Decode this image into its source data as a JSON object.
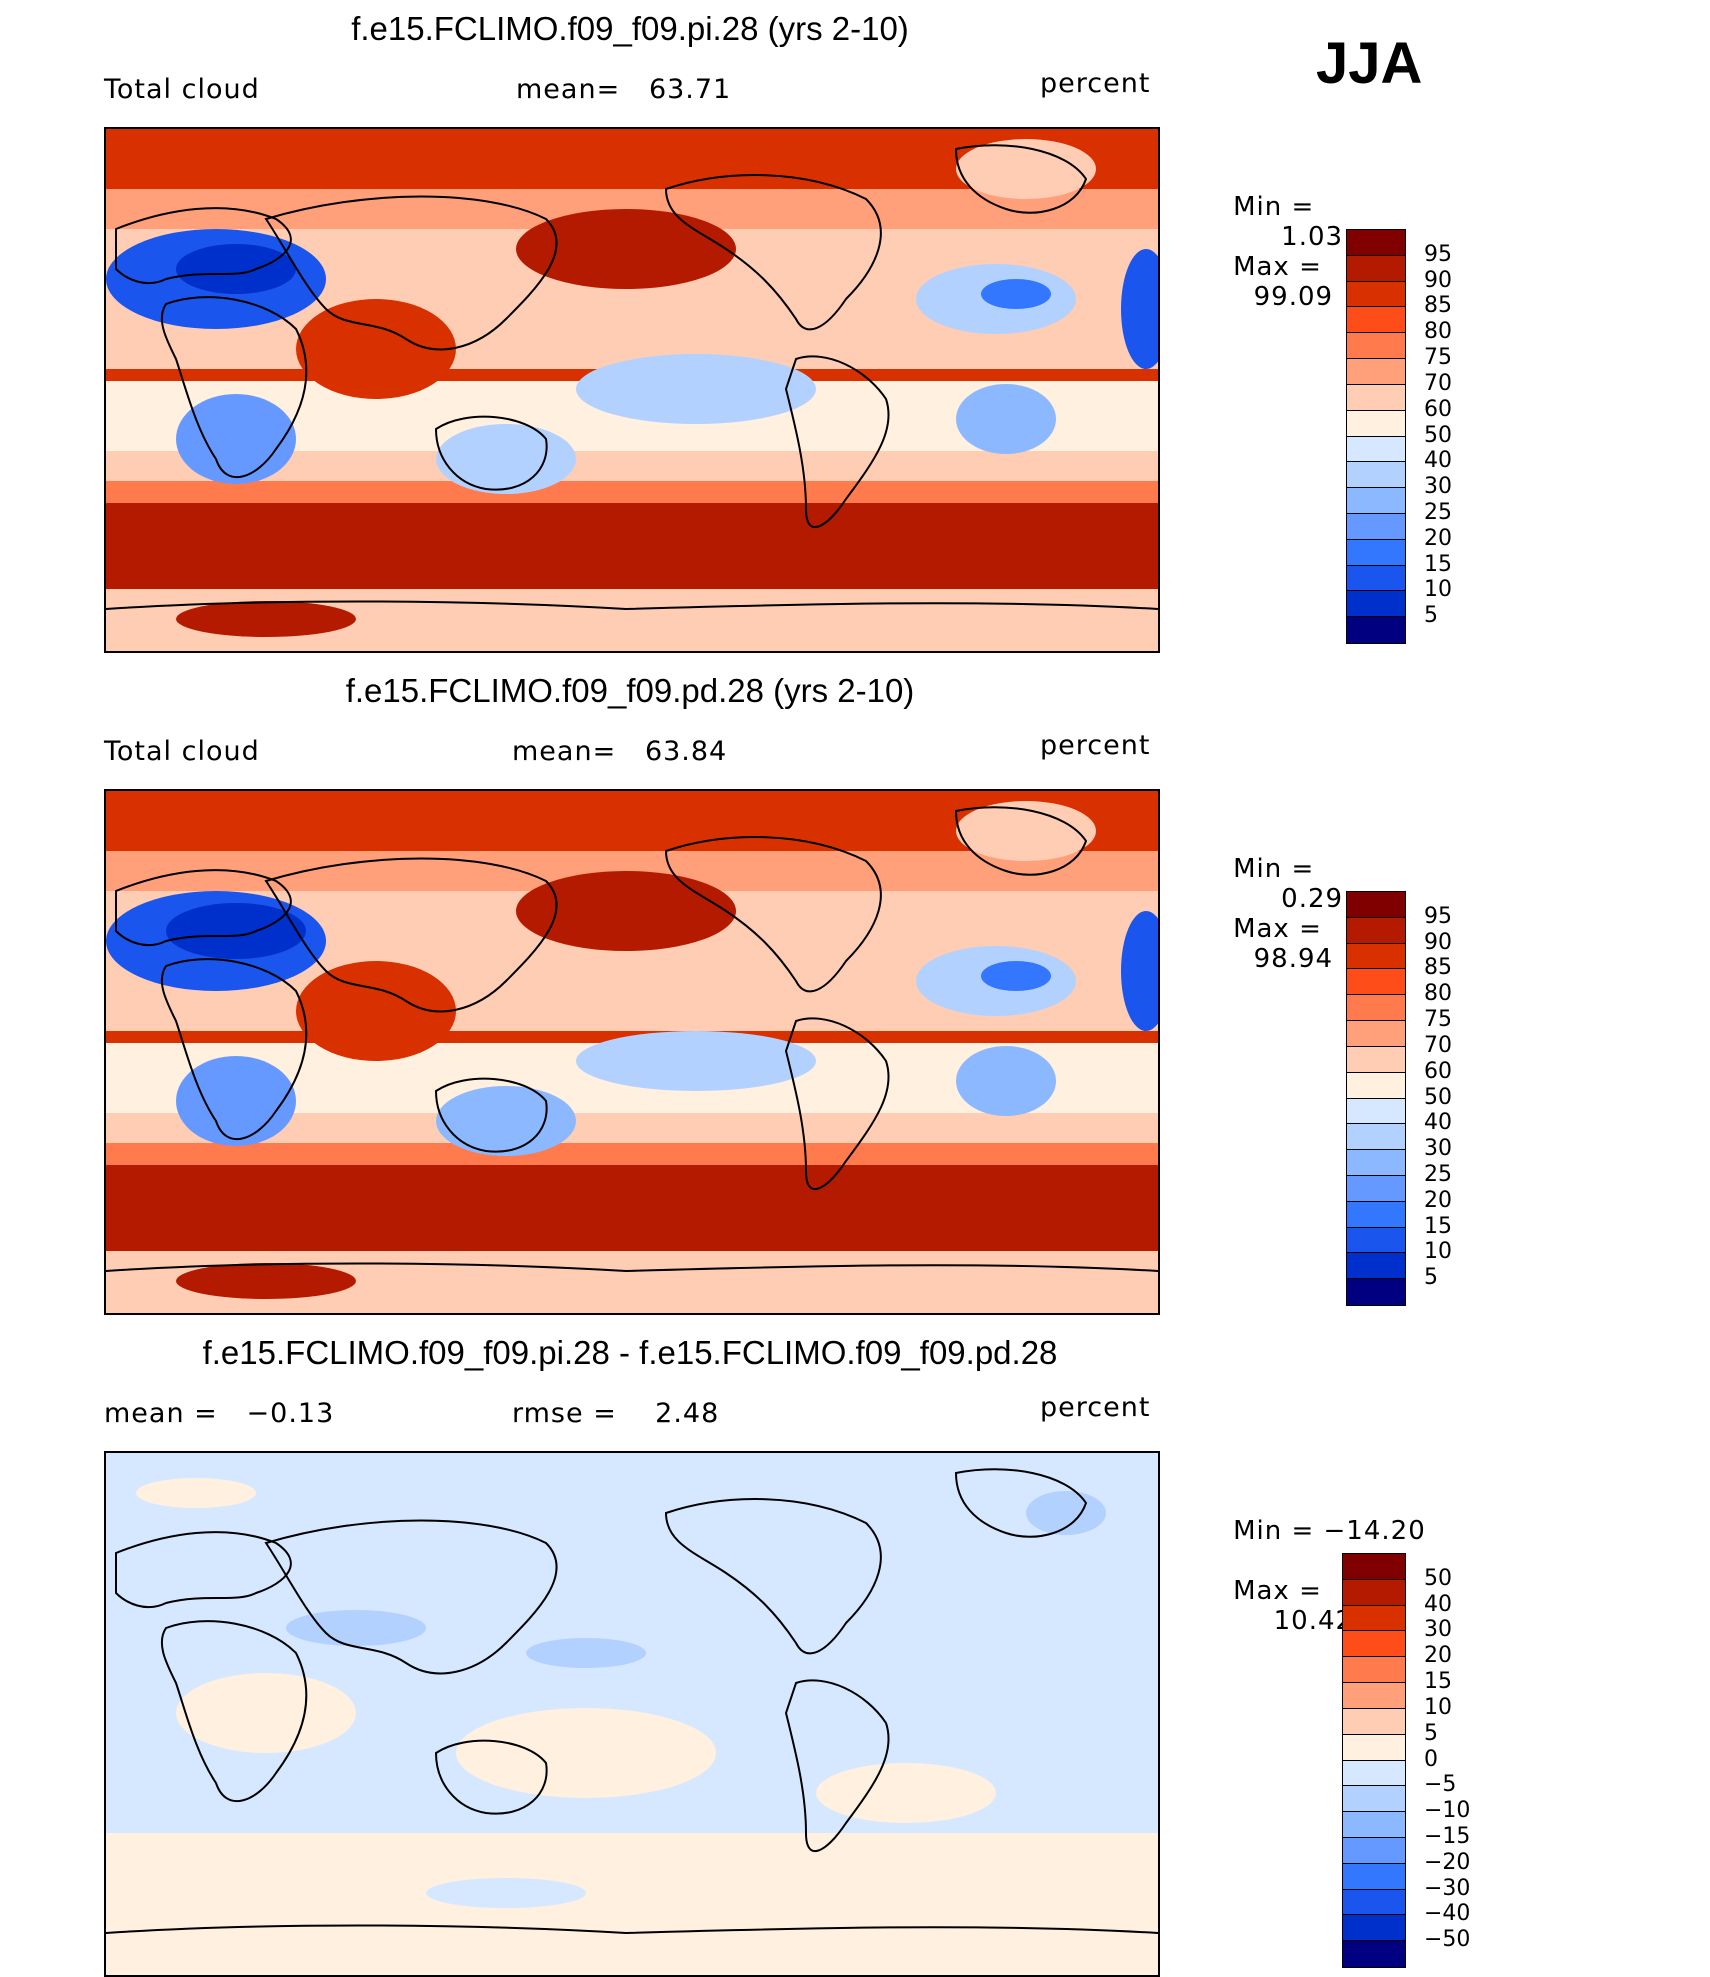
{
  "season": "JJA",
  "units": "percent",
  "panels": [
    {
      "title": "f.e15.FCLIMO.f09_f09.pi.28 (yrs 2-10)",
      "left_label": "Total cloud",
      "stat1": "mean=   63.71",
      "right_label": "percent",
      "min_label": "Min =",
      "min_value": "1.03",
      "max_label": "Max =",
      "max_value": "99.09",
      "levels": [
        "95",
        "90",
        "85",
        "80",
        "75",
        "70",
        "60",
        "50",
        "40",
        "30",
        "25",
        "20",
        "15",
        "10",
        "5"
      ],
      "colors": [
        "#800000",
        "#b31a00",
        "#d93000",
        "#ff4d1a",
        "#ff7a4d",
        "#ffa07a",
        "#ffcdb3",
        "#fff0e0",
        "#d6e8ff",
        "#b3d1ff",
        "#8cb8ff",
        "#6699ff",
        "#3377ff",
        "#1a55ee",
        "#0030cc",
        "#000080"
      ]
    },
    {
      "title": "f.e15.FCLIMO.f09_f09.pd.28 (yrs 2-10)",
      "left_label": "Total cloud",
      "stat1": "mean=   63.84",
      "right_label": "percent",
      "min_label": "Min =",
      "min_value": "0.29",
      "max_label": "Max =",
      "max_value": "98.94",
      "levels": [
        "95",
        "90",
        "85",
        "80",
        "75",
        "70",
        "60",
        "50",
        "40",
        "30",
        "25",
        "20",
        "15",
        "10",
        "5"
      ],
      "colors": [
        "#800000",
        "#b31a00",
        "#d93000",
        "#ff4d1a",
        "#ff7a4d",
        "#ffa07a",
        "#ffcdb3",
        "#fff0e0",
        "#d6e8ff",
        "#b3d1ff",
        "#8cb8ff",
        "#6699ff",
        "#3377ff",
        "#1a55ee",
        "#0030cc",
        "#000080"
      ]
    },
    {
      "title": "f.e15.FCLIMO.f09_f09.pi.28 - f.e15.FCLIMO.f09_f09.pd.28",
      "left_label": "mean =   −0.13",
      "stat1": "rmse =    2.48",
      "right_label": "percent",
      "min_label": "Min = −14.20",
      "min_value": "",
      "max_label": "Max =",
      "max_value": "10.42",
      "levels": [
        "50",
        "40",
        "30",
        "20",
        "15",
        "10",
        "5",
        "0",
        "−5",
        "−10",
        "−15",
        "−20",
        "−30",
        "−40",
        "−50"
      ],
      "colors": [
        "#800000",
        "#b31a00",
        "#d93000",
        "#ff4d1a",
        "#ff7a4d",
        "#ffa07a",
        "#ffcdb3",
        "#fff0e0",
        "#d6e8ff",
        "#b3d1ff",
        "#8cb8ff",
        "#6699ff",
        "#3377ff",
        "#1a55ee",
        "#0030cc",
        "#000080"
      ]
    }
  ]
}
